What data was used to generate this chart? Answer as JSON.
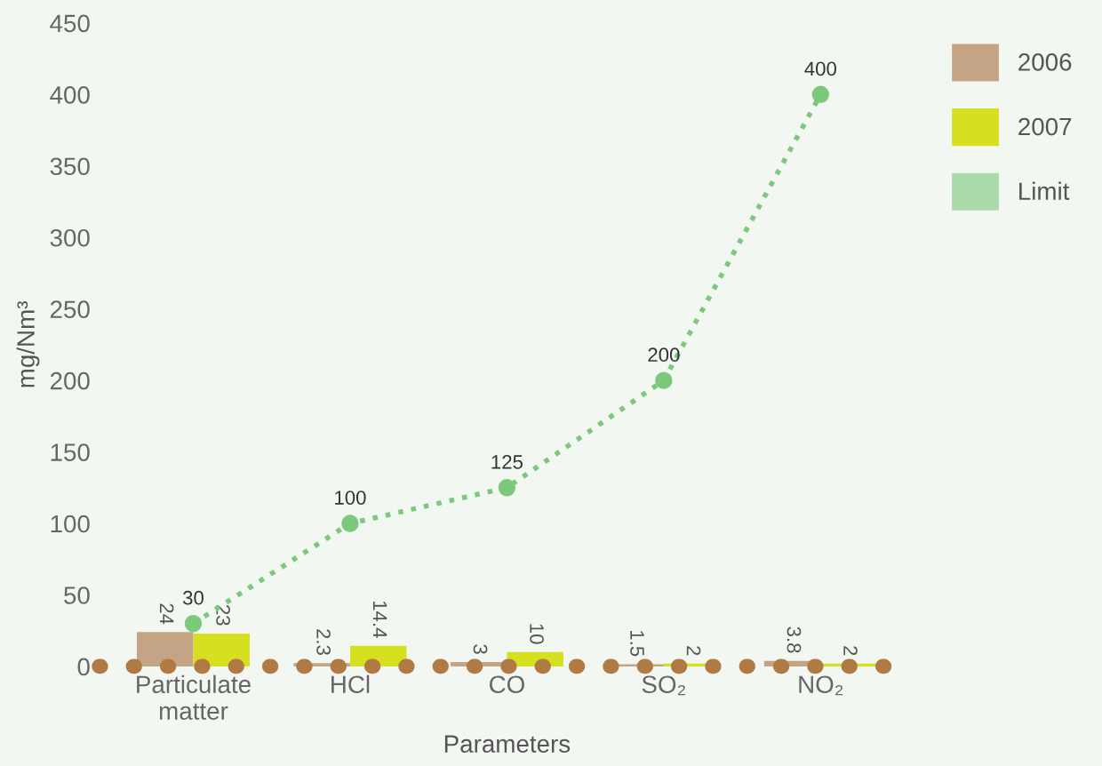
{
  "chart_data": {
    "type": "bar",
    "xlabel": "Parameters",
    "ylabel": "mg/Nm³",
    "categories": [
      "Particulate\nmatter",
      "HCl",
      "CO",
      "SO₂",
      "NO₂"
    ],
    "series": [
      {
        "name": "2006",
        "color": "#c4a484",
        "values": [
          24,
          2.3,
          3,
          1.5,
          3.8
        ]
      },
      {
        "name": "2007",
        "color": "#d7df21",
        "values": [
          23,
          14.4,
          10,
          2,
          2
        ]
      },
      {
        "name": "Limit",
        "type": "line",
        "color": "#7cc87c",
        "values": [
          30,
          100,
          125,
          200,
          400
        ],
        "marker": "circle",
        "line_style": "dotted"
      }
    ],
    "ylim": [
      0,
      450
    ],
    "yticks": [
      0,
      50,
      100,
      150,
      200,
      250,
      300,
      350,
      400,
      450
    ],
    "data_labels": true,
    "legend": "top right",
    "grid": false
  }
}
